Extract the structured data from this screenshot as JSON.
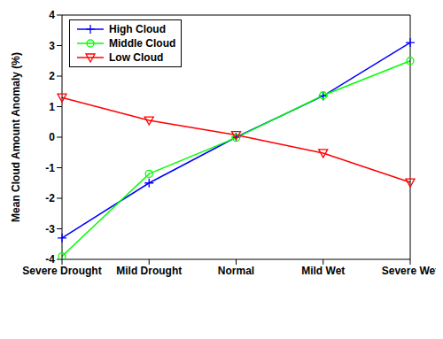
{
  "chart_data": {
    "type": "line",
    "categories": [
      "Severe Drought",
      "Mild Drought",
      "Normal",
      "Mild Wet",
      "Severe Wet"
    ],
    "ylabel": "Mean Cloud Amount Anomaly (%)",
    "ylim": [
      -4,
      4
    ],
    "yticks": [
      -4,
      -3,
      -2,
      -1,
      0,
      1,
      2,
      3,
      4
    ],
    "grid": false,
    "legend": "upper left",
    "series": [
      {
        "name": "High Cloud",
        "color": "#0000ff",
        "marker": "plus",
        "values": [
          -3.3,
          -1.5,
          0,
          1.35,
          3.1
        ]
      },
      {
        "name": "Middle Cloud",
        "color": "#00ff00",
        "marker": "circle",
        "values": [
          -3.9,
          -1.2,
          -0.02,
          1.37,
          2.5
        ]
      },
      {
        "name": "Low Cloud",
        "color": "#ff0000",
        "marker": "triangle-down",
        "values": [
          1.3,
          0.55,
          0.07,
          -0.52,
          -1.48
        ]
      }
    ]
  }
}
